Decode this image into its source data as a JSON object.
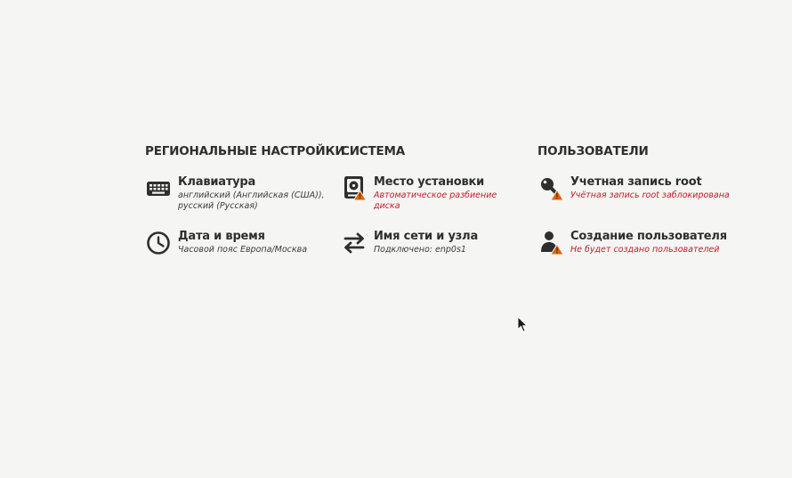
{
  "regional": {
    "title": "РЕГИОНАЛЬНЫЕ НАСТРОЙКИ",
    "keyboard": {
      "title": "Клавиатура",
      "status": "английский (Английская (США)), русский (Русская)",
      "icon": "keyboard-icon"
    },
    "datetime": {
      "title": "Дата и время",
      "status": "Часовой пояс Европа/Москва",
      "icon": "clock-icon"
    }
  },
  "system": {
    "title": "СИСТЕМА",
    "install_dest": {
      "title": "Место установки",
      "status": "Автоматическое разбиение диска",
      "icon": "disk-drive-icon"
    },
    "network": {
      "title": "Имя сети и узла",
      "status": "Подключено: enp0s1",
      "icon": "network-arrows-icon"
    }
  },
  "users": {
    "title": "ПОЛЬЗОВАТЕЛИ",
    "root": {
      "title": "Учетная запись root",
      "status": "Учётная запись root заблокирована",
      "icon": "key-icon"
    },
    "create_user": {
      "title": "Создание пользователя",
      "status": "Не будет создано пользователей",
      "icon": "user-icon"
    }
  },
  "colors": {
    "text": "#2e2e2e",
    "warning": "#c01c28",
    "warning_icon": "#e66100",
    "background": "#f5f5f4"
  }
}
